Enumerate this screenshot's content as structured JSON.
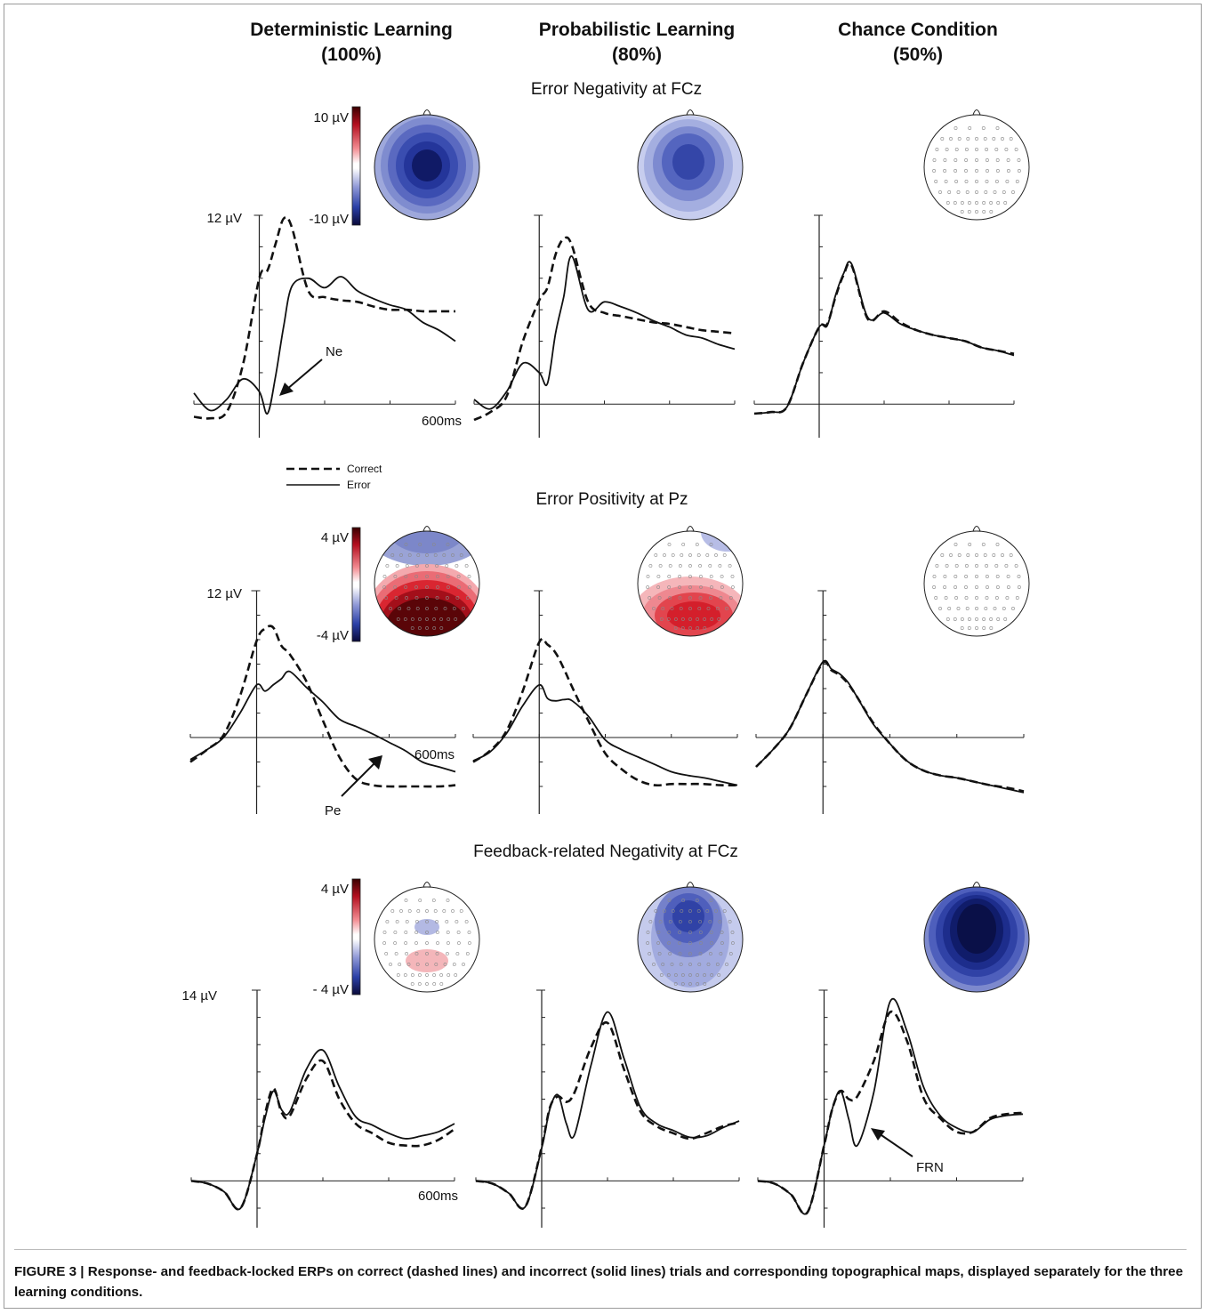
{
  "figure": {
    "columns": [
      {
        "title": "Deterministic Learning",
        "sub": "(100%)"
      },
      {
        "title": "Probabilistic Learning",
        "sub": "(80%)"
      },
      {
        "title": "Chance Condition",
        "sub": "(50%)"
      }
    ],
    "rows": [
      {
        "title": "Error Negativity at FCz",
        "scale_top": "10 µV",
        "scale_bottom": "-10 µV",
        "y_max_label": "12 µV"
      },
      {
        "title": "Error Positivity  at Pz",
        "scale_top": "4 µV",
        "scale_bottom": "-4 µV",
        "y_max_label": "12 µV"
      },
      {
        "title": "Feedback-related Negativity at FCz",
        "scale_top": "4 µV",
        "scale_bottom": "- 4 µV",
        "y_max_label": "14 µV"
      }
    ],
    "time_label": "600ms",
    "legend": {
      "correct": "Correct",
      "error": "Error"
    },
    "annotations": {
      "ne": "Ne",
      "pe": "Pe",
      "frn": "FRN"
    },
    "colors": {
      "positive": "#c8102e",
      "negative": "#1f3a9e",
      "line": "#111111"
    }
  },
  "chart_data": [
    {
      "type": "line",
      "panel": "Error Negativity at FCz – Deterministic (100%)",
      "x_unit": "ms",
      "y_unit": "µV",
      "ylim": [
        -1,
        12
      ],
      "x": [
        -200,
        -150,
        -100,
        -50,
        0,
        25,
        50,
        75,
        100,
        150,
        200,
        250,
        300,
        350,
        400,
        450,
        500,
        550,
        600
      ],
      "series": [
        {
          "name": "Correct",
          "values": [
            -0.8,
            -0.9,
            -0.5,
            2.5,
            8.0,
            8.5,
            10.2,
            11.8,
            11.2,
            7.2,
            6.8,
            6.6,
            6.5,
            6.2,
            6.0,
            6.0,
            5.9,
            5.9,
            5.9
          ]
        },
        {
          "name": "Error",
          "values": [
            0.7,
            -0.4,
            0.3,
            1.6,
            0.8,
            -0.6,
            1.8,
            5.0,
            7.5,
            8.0,
            7.4,
            8.1,
            7.2,
            6.7,
            6.3,
            6.0,
            5.2,
            4.7,
            4.0
          ]
        }
      ]
    },
    {
      "type": "line",
      "panel": "Error Negativity at FCz – Probabilistic (80%)",
      "x_unit": "ms",
      "y_unit": "µV",
      "ylim": [
        -1,
        12
      ],
      "x": [
        -200,
        -150,
        -100,
        -50,
        0,
        25,
        50,
        75,
        100,
        150,
        200,
        250,
        300,
        350,
        400,
        450,
        500,
        550,
        600
      ],
      "series": [
        {
          "name": "Correct",
          "values": [
            -1.0,
            -0.5,
            0.5,
            4.0,
            6.6,
            7.4,
            9.5,
            10.5,
            10.1,
            6.5,
            5.8,
            5.6,
            5.4,
            5.2,
            5.1,
            4.9,
            4.7,
            4.6,
            4.5
          ]
        },
        {
          "name": "Error",
          "values": [
            0.3,
            -0.3,
            0.8,
            2.6,
            2.0,
            1.3,
            4.5,
            6.8,
            9.4,
            6.0,
            6.5,
            6.2,
            5.8,
            5.3,
            4.9,
            4.4,
            4.2,
            3.8,
            3.5
          ]
        }
      ]
    },
    {
      "type": "line",
      "panel": "Error Negativity at FCz – Chance (50%)",
      "x_unit": "ms",
      "y_unit": "µV",
      "ylim": [
        -1,
        12
      ],
      "x": [
        -200,
        -150,
        -100,
        -50,
        0,
        25,
        50,
        75,
        100,
        150,
        200,
        250,
        300,
        350,
        400,
        450,
        500,
        550,
        600
      ],
      "series": [
        {
          "name": "Correct",
          "values": [
            -0.6,
            -0.5,
            -0.2,
            2.6,
            4.9,
            5.1,
            6.8,
            8.2,
            8.8,
            5.4,
            5.9,
            5.2,
            4.7,
            4.4,
            4.2,
            4.0,
            3.6,
            3.4,
            3.2
          ]
        },
        {
          "name": "Error",
          "values": [
            -0.6,
            -0.5,
            -0.2,
            2.6,
            4.9,
            5.0,
            6.9,
            8.3,
            8.9,
            5.5,
            5.8,
            5.1,
            4.7,
            4.4,
            4.2,
            4.0,
            3.6,
            3.4,
            3.1
          ]
        }
      ]
    },
    {
      "type": "line",
      "panel": "Error Positivity at Pz – Deterministic (100%)",
      "x_unit": "ms",
      "y_unit": "µV",
      "ylim": [
        -4,
        12
      ],
      "x": [
        -200,
        -150,
        -100,
        -50,
        0,
        25,
        50,
        75,
        100,
        150,
        200,
        250,
        300,
        350,
        400,
        450,
        500,
        550,
        600
      ],
      "series": [
        {
          "name": "Correct",
          "values": [
            -2.0,
            -1.0,
            0.2,
            3.4,
            7.9,
            8.9,
            9.0,
            7.5,
            6.8,
            4.6,
            1.4,
            -1.6,
            -3.4,
            -3.9,
            -4.0,
            -4.0,
            -4.0,
            -4.0,
            -3.9
          ]
        },
        {
          "name": "Error",
          "values": [
            -1.8,
            -1.0,
            0.0,
            2.0,
            4.3,
            3.8,
            4.3,
            4.8,
            5.4,
            4.1,
            2.9,
            1.5,
            0.9,
            0.3,
            -0.4,
            -1.1,
            -2.0,
            -2.4,
            -2.8
          ]
        }
      ]
    },
    {
      "type": "line",
      "panel": "Error Positivity at Pz – Probabilistic (80%)",
      "x_unit": "ms",
      "y_unit": "µV",
      "ylim": [
        -4,
        12
      ],
      "x": [
        -200,
        -150,
        -100,
        -50,
        0,
        25,
        50,
        75,
        100,
        150,
        200,
        250,
        300,
        350,
        400,
        450,
        500,
        550,
        600
      ],
      "series": [
        {
          "name": "Correct",
          "values": [
            -2.0,
            -1.1,
            0.5,
            3.8,
            7.8,
            7.6,
            6.9,
            5.6,
            4.1,
            1.3,
            -1.3,
            -2.6,
            -3.5,
            -3.9,
            -3.8,
            -3.8,
            -3.8,
            -3.9,
            -3.9
          ]
        },
        {
          "name": "Error",
          "values": [
            -1.9,
            -1.2,
            0.3,
            2.6,
            4.3,
            3.2,
            3.0,
            3.1,
            3.0,
            1.7,
            -0.2,
            -1.0,
            -1.6,
            -2.2,
            -2.8,
            -3.1,
            -3.3,
            -3.6,
            -3.9
          ]
        }
      ]
    },
    {
      "type": "line",
      "panel": "Error Positivity at Pz – Chance (50%)",
      "x_unit": "ms",
      "y_unit": "µV",
      "ylim": [
        -4,
        12
      ],
      "x": [
        -200,
        -150,
        -100,
        -50,
        0,
        25,
        50,
        75,
        100,
        150,
        200,
        250,
        300,
        350,
        400,
        450,
        500,
        550,
        600
      ],
      "series": [
        {
          "name": "Correct",
          "values": [
            -2.4,
            -1.0,
            0.7,
            3.5,
            6.1,
            5.5,
            5.1,
            4.4,
            3.4,
            1.2,
            -0.5,
            -1.9,
            -2.7,
            -3.1,
            -3.3,
            -3.6,
            -3.9,
            -4.1,
            -4.4
          ]
        },
        {
          "name": "Error",
          "values": [
            -2.4,
            -1.0,
            0.7,
            3.5,
            6.2,
            5.6,
            5.2,
            4.5,
            3.4,
            1.1,
            -0.5,
            -1.9,
            -2.7,
            -3.1,
            -3.3,
            -3.6,
            -3.9,
            -4.2,
            -4.5
          ]
        }
      ]
    },
    {
      "type": "line",
      "panel": "Feedback-related Negativity at FCz – Deterministic (100%)",
      "x_unit": "ms",
      "y_unit": "µV",
      "ylim": [
        -2,
        14
      ],
      "x": [
        -200,
        -150,
        -100,
        -50,
        0,
        25,
        50,
        75,
        100,
        150,
        200,
        250,
        300,
        350,
        400,
        450,
        500,
        550,
        600
      ],
      "series": [
        {
          "name": "Correct",
          "values": [
            0,
            -0.2,
            -0.8,
            -2.0,
            2.0,
            5.0,
            6.8,
            5.0,
            4.8,
            7.5,
            8.8,
            6.0,
            4.2,
            3.5,
            2.8,
            2.6,
            2.6,
            3.0,
            3.8
          ]
        },
        {
          "name": "Error",
          "values": [
            0,
            -0.2,
            -0.8,
            -2.0,
            2.0,
            4.7,
            6.6,
            5.2,
            5.1,
            8.2,
            9.6,
            6.9,
            4.7,
            4.1,
            3.5,
            3.1,
            3.3,
            3.6,
            4.2
          ]
        }
      ]
    },
    {
      "type": "line",
      "panel": "Feedback-related Negativity at FCz – Probabilistic (80%)",
      "x_unit": "ms",
      "y_unit": "µV",
      "ylim": [
        -2,
        14
      ],
      "x": [
        -200,
        -150,
        -100,
        -50,
        0,
        25,
        50,
        75,
        100,
        150,
        200,
        250,
        300,
        350,
        400,
        450,
        500,
        550,
        600
      ],
      "series": [
        {
          "name": "Correct",
          "values": [
            0,
            -0.2,
            -0.9,
            -1.9,
            2.5,
            5.4,
            6.2,
            5.8,
            6.5,
            9.8,
            11.6,
            8.2,
            5.1,
            4.0,
            3.5,
            3.1,
            3.5,
            4.0,
            4.3
          ]
        },
        {
          "name": "Error",
          "values": [
            0,
            -0.2,
            -0.9,
            -1.9,
            2.4,
            5.3,
            6.3,
            4.2,
            3.4,
            8.5,
            12.4,
            9.0,
            5.4,
            4.2,
            3.7,
            3.2,
            3.3,
            3.9,
            4.4
          ]
        }
      ]
    },
    {
      "type": "line",
      "panel": "Feedback-related Negativity at FCz – Chance (50%)",
      "x_unit": "ms",
      "y_unit": "µV",
      "ylim": [
        -2,
        14
      ],
      "x": [
        -200,
        -150,
        -100,
        -50,
        0,
        25,
        50,
        75,
        100,
        150,
        200,
        250,
        300,
        350,
        400,
        450,
        500,
        550,
        600
      ],
      "series": [
        {
          "name": "Correct",
          "values": [
            0,
            -0.2,
            -1.0,
            -2.3,
            2.6,
            5.3,
            6.6,
            6.0,
            6.2,
            8.8,
            12.4,
            10.3,
            6.1,
            4.6,
            3.6,
            3.6,
            4.6,
            4.9,
            5.0
          ]
        },
        {
          "name": "Error",
          "values": [
            0,
            -0.2,
            -1.0,
            -2.3,
            2.6,
            5.3,
            6.6,
            4.5,
            2.6,
            6.5,
            13.2,
            11.0,
            6.9,
            4.8,
            3.9,
            3.6,
            4.5,
            4.8,
            4.9
          ]
        }
      ]
    }
  ],
  "caption": {
    "label": "FIGURE 3 | ",
    "text": "Response- and feedback-locked ERPs on correct (dashed lines) and incorrect (solid lines) trials and corresponding topographical maps, displayed separately for the three learning conditions."
  }
}
